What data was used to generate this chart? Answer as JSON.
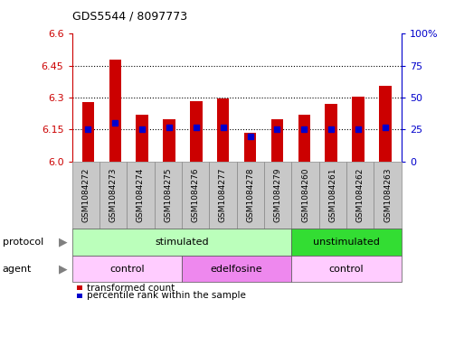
{
  "title": "GDS5544 / 8097773",
  "samples": [
    "GSM1084272",
    "GSM1084273",
    "GSM1084274",
    "GSM1084275",
    "GSM1084276",
    "GSM1084277",
    "GSM1084278",
    "GSM1084279",
    "GSM1084260",
    "GSM1084261",
    "GSM1084262",
    "GSM1084263"
  ],
  "transformed_counts": [
    6.28,
    6.48,
    6.22,
    6.2,
    6.285,
    6.295,
    6.135,
    6.2,
    6.22,
    6.27,
    6.305,
    6.355
  ],
  "percentile_ranks": [
    25,
    30,
    25,
    27,
    27,
    27,
    20,
    25,
    25,
    25,
    25,
    27
  ],
  "bar_bottom": 6.0,
  "ylim": [
    6.0,
    6.6
  ],
  "yticks": [
    6.0,
    6.15,
    6.3,
    6.45,
    6.6
  ],
  "right_yticks": [
    0,
    25,
    50,
    75,
    100
  ],
  "right_ylim": [
    0,
    100
  ],
  "dotted_lines": [
    6.15,
    6.3,
    6.45
  ],
  "bar_color": "#cc0000",
  "percentile_color": "#0000cc",
  "protocol_groups": [
    {
      "label": "stimulated",
      "start": 0,
      "end": 8,
      "color": "#bbffbb"
    },
    {
      "label": "unstimulated",
      "start": 8,
      "end": 12,
      "color": "#33dd33"
    }
  ],
  "agent_groups": [
    {
      "label": "control",
      "start": 0,
      "end": 4,
      "color": "#ffccff"
    },
    {
      "label": "edelfosine",
      "start": 4,
      "end": 8,
      "color": "#ee88ee"
    },
    {
      "label": "control",
      "start": 8,
      "end": 12,
      "color": "#ffccff"
    }
  ],
  "legend_items": [
    {
      "label": "transformed count",
      "color": "#cc0000"
    },
    {
      "label": "percentile rank within the sample",
      "color": "#0000cc"
    }
  ],
  "protocol_label": "protocol",
  "agent_label": "agent",
  "bar_width": 0.45,
  "percentile_marker_size": 5,
  "sample_cell_color": "#c8c8c8",
  "arrow_color": "#808080"
}
